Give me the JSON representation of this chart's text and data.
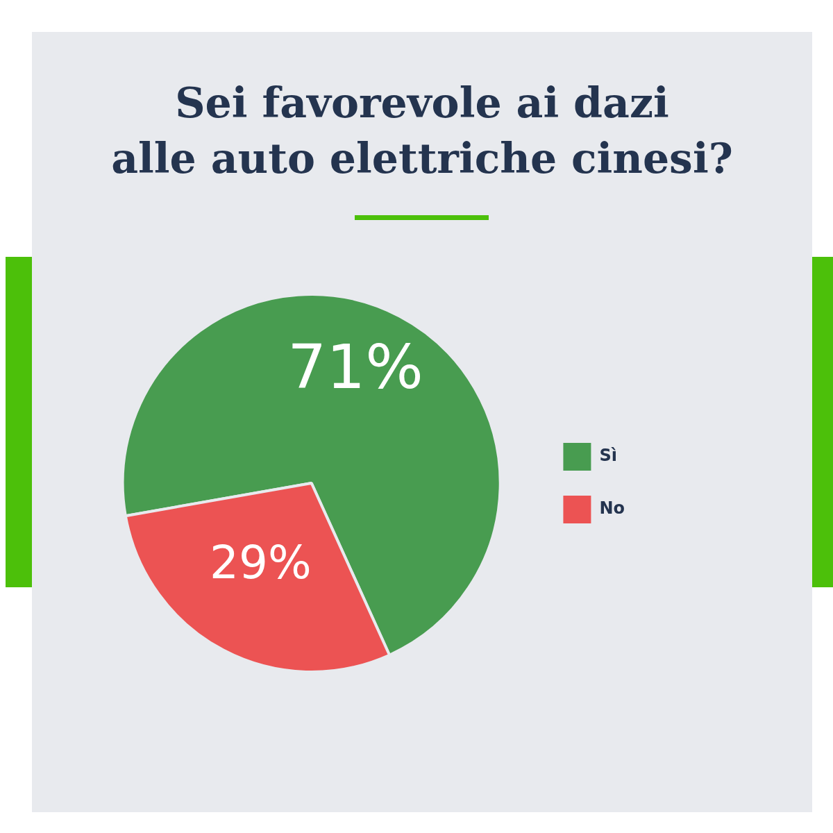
{
  "chart_data": {
    "type": "pie",
    "title": "Sei favorevole ai dazi\nalle auto elettriche cinesi?",
    "categories": [
      "Sì",
      "No"
    ],
    "values": [
      71,
      29
    ],
    "colors": [
      "#489c50",
      "#ec5353"
    ],
    "value_labels": [
      "71%",
      "29%"
    ],
    "legend": "right"
  }
}
